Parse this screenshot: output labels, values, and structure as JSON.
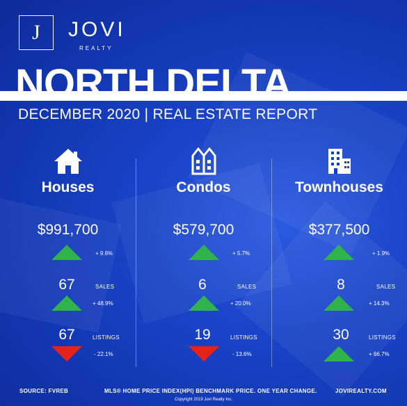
{
  "brand": {
    "name": "JOVI",
    "sub": "REALTY",
    "mark": "J"
  },
  "title": "NORTH DELTA",
  "subtitle": "DECEMBER 2020 | REAL ESTATE REPORT",
  "colors": {
    "up": "#2fb34a",
    "down": "#e3231c",
    "background": "#1338b8"
  },
  "columns": [
    {
      "category": "Houses",
      "icon": "house-icon",
      "price": "$991,700",
      "price_change": "+ 9.6%",
      "price_dir": "up",
      "sales": "67",
      "sales_label": "SALES",
      "sales_change": "+ 48.9%",
      "sales_dir": "up",
      "listings": "67",
      "listings_label": "LISTINGS",
      "listings_change": "- 22.1%",
      "listings_dir": "down"
    },
    {
      "category": "Condos",
      "icon": "condo-icon",
      "price": "$579,700",
      "price_change": "+ 5.7%",
      "price_dir": "up",
      "sales": "6",
      "sales_label": "SALES",
      "sales_change": "+ 20.0%",
      "sales_dir": "up",
      "listings": "19",
      "listings_label": "LISTINGS",
      "listings_change": "- 13.6%",
      "listings_dir": "down"
    },
    {
      "category": "Townhouses",
      "icon": "townhouse-icon",
      "price": "$377,500",
      "price_change": "+ 1.9%",
      "price_dir": "up",
      "sales": "8",
      "sales_label": "SALES",
      "sales_change": "+ 14.3%",
      "sales_dir": "up",
      "listings": "30",
      "listings_label": "LISTINGS",
      "listings_change": "+ 66.7%",
      "listings_dir": "up"
    }
  ],
  "footer": {
    "source": "SOURCE: FVREB",
    "note": "MLS® HOME PRICE INDEX(HPI) BENCHMARK PRICE. ONE YEAR CHANGE.",
    "site": "JOVIREALTY.COM",
    "copyright": "Copyright 2019 Jovi Realty Inc."
  }
}
